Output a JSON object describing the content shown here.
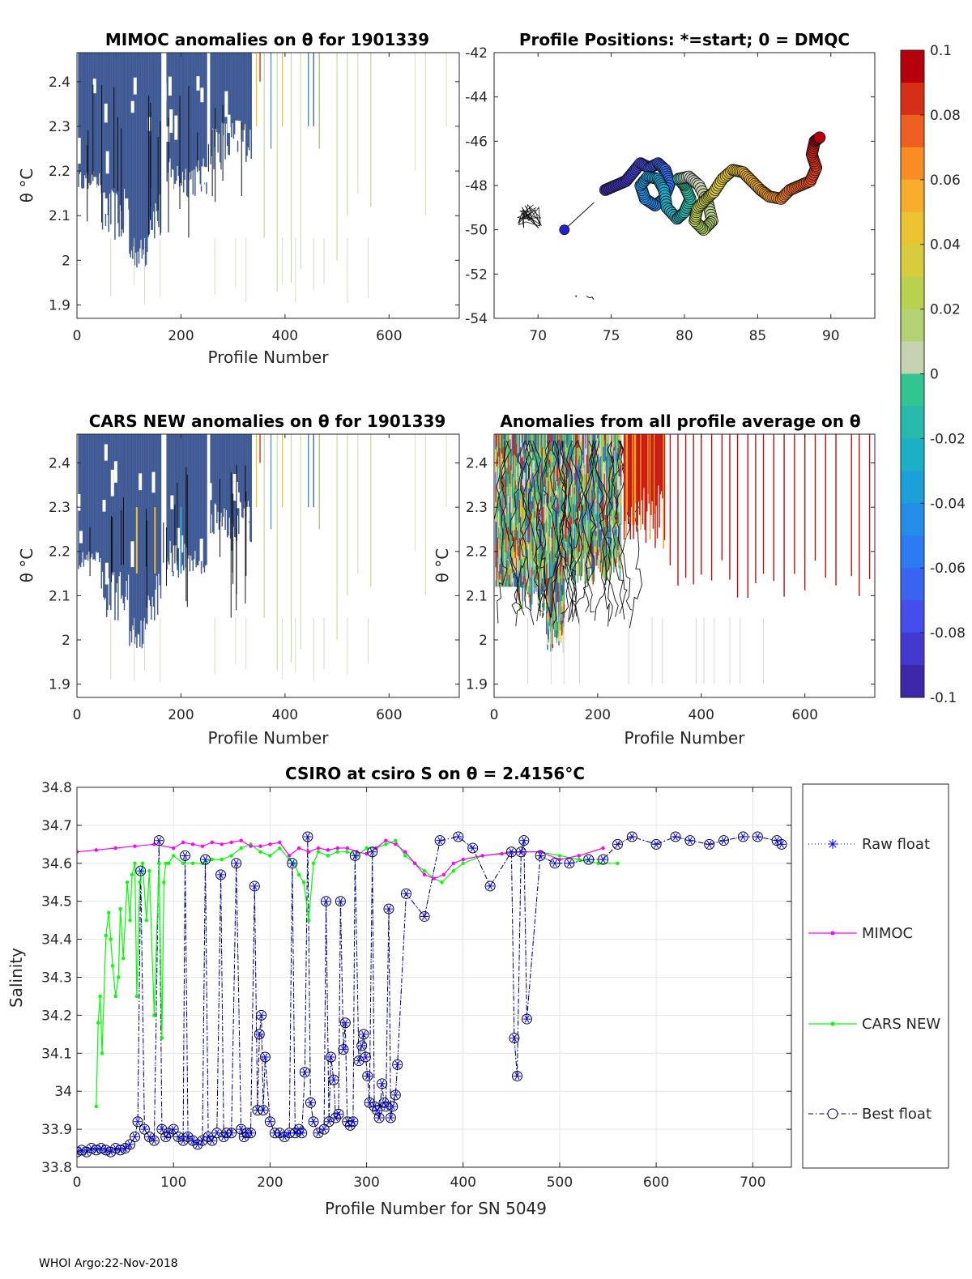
{
  "footer": "WHOI Argo:22-Nov-2018",
  "colorbar": {
    "ticks": [
      "0.1",
      "0.08",
      "0.06",
      "0.04",
      "0.02",
      "0",
      "-0.02",
      "-0.04",
      "-0.06",
      "-0.08",
      "-0.1"
    ],
    "range": [
      -0.1,
      0.1
    ]
  },
  "chart_data": [
    {
      "type": "heatmap",
      "title": "MIMOC anomalies on θ  for 1901339",
      "xlabel": "Profile Number",
      "ylabel": "θ °C",
      "xlim": [
        0,
        735
      ],
      "ylim": [
        1.87,
        2.465
      ],
      "xticks": [
        "0",
        "200",
        "400",
        "600"
      ],
      "yticks": [
        "2.4",
        "2.3",
        "2.2",
        "2.1",
        "2",
        "1.9"
      ]
    },
    {
      "type": "scatter",
      "title": "Profile Positions: *=start; 0 = DMQC",
      "xlim": [
        67,
        93
      ],
      "ylim": [
        -54,
        -42
      ],
      "xticks": [
        "70",
        "75",
        "80",
        "85",
        "90"
      ],
      "yticks": [
        "-42",
        "-44",
        "-46",
        "-48",
        "-50",
        "-52",
        "-54"
      ],
      "start": [
        74.1,
        -48.6
      ],
      "dmqc": [
        71.8,
        -50.0
      ],
      "track": [
        [
          74.6,
          -48.2
        ],
        [
          75.3,
          -48.0
        ],
        [
          76.0,
          -47.8
        ],
        [
          76.5,
          -47.4
        ],
        [
          77.0,
          -47.0
        ],
        [
          77.6,
          -47.2
        ],
        [
          78.2,
          -47.0
        ],
        [
          78.7,
          -47.3
        ],
        [
          79.0,
          -47.9
        ],
        [
          78.6,
          -48.6
        ],
        [
          78.0,
          -48.9
        ],
        [
          77.3,
          -48.6
        ],
        [
          77.0,
          -48.0
        ],
        [
          77.5,
          -47.6
        ],
        [
          78.2,
          -47.7
        ],
        [
          78.6,
          -48.2
        ],
        [
          78.8,
          -49.0
        ],
        [
          79.5,
          -49.5
        ],
        [
          80.0,
          -49.2
        ],
        [
          80.4,
          -48.6
        ],
        [
          80.0,
          -48.0
        ],
        [
          79.6,
          -47.7
        ],
        [
          80.3,
          -47.6
        ],
        [
          81.0,
          -48.0
        ],
        [
          81.6,
          -48.8
        ],
        [
          81.9,
          -49.6
        ],
        [
          81.3,
          -50.0
        ],
        [
          80.7,
          -49.6
        ],
        [
          80.9,
          -49.0
        ],
        [
          81.5,
          -48.6
        ],
        [
          82.0,
          -48.3
        ],
        [
          82.6,
          -47.7
        ],
        [
          83.3,
          -47.3
        ],
        [
          84.0,
          -47.4
        ],
        [
          84.6,
          -47.8
        ],
        [
          85.2,
          -48.2
        ],
        [
          85.8,
          -48.5
        ],
        [
          86.6,
          -48.6
        ],
        [
          87.2,
          -48.2
        ],
        [
          87.9,
          -48.0
        ],
        [
          88.6,
          -47.8
        ],
        [
          89.0,
          -47.2
        ],
        [
          88.7,
          -46.6
        ],
        [
          88.9,
          -46.0
        ],
        [
          89.3,
          -45.8
        ]
      ]
    },
    {
      "type": "heatmap",
      "title": "CARS NEW anomalies on θ for 1901339",
      "xlabel": "Profile Number",
      "ylabel": "θ °C",
      "xlim": [
        0,
        735
      ],
      "ylim": [
        1.87,
        2.465
      ],
      "xticks": [
        "0",
        "200",
        "400",
        "600"
      ],
      "yticks": [
        "2.4",
        "2.3",
        "2.2",
        "2.1",
        "2",
        "1.9"
      ]
    },
    {
      "type": "heatmap",
      "title": "Anomalies from all profile average on θ",
      "xlabel": "Profile Number",
      "ylabel": "θ °C",
      "xlim": [
        0,
        735
      ],
      "ylim": [
        1.87,
        2.465
      ],
      "xticks": [
        "0",
        "200",
        "400",
        "600"
      ],
      "yticks": [
        "2.4",
        "2.3",
        "2.2",
        "2.1",
        "2",
        "1.9"
      ]
    },
    {
      "type": "line",
      "title": "CSIRO at csiro S on θ = 2.4156°C",
      "xlabel": "Profile Number for SN 5049",
      "ylabel": "Salinity",
      "xlim": [
        0,
        740
      ],
      "ylim": [
        33.8,
        34.8
      ],
      "xticks": [
        "0",
        "100",
        "200",
        "300",
        "400",
        "500",
        "600",
        "700"
      ],
      "yticks": [
        "34.8",
        "34.7",
        "34.6",
        "34.5",
        "34.4",
        "34.3",
        "34.2",
        "34.1",
        "34",
        "33.9",
        "33.8"
      ],
      "series": [
        {
          "name": "Raw float",
          "color": "#0000ff",
          "style": "dotted-asterisk"
        },
        {
          "name": "MIMOC",
          "color": "#ff00ff",
          "style": "solid-dot",
          "x": [
            0,
            20,
            40,
            60,
            80,
            100,
            110,
            120,
            130,
            140,
            150,
            160,
            170,
            180,
            190,
            200,
            210,
            220,
            230,
            240,
            250,
            260,
            270,
            280,
            290,
            300,
            310,
            320,
            330,
            340,
            350,
            360,
            370,
            380,
            390,
            400,
            420,
            440,
            460,
            480,
            500,
            520,
            545
          ],
          "y": [
            34.63,
            34.635,
            34.64,
            34.645,
            34.65,
            34.64,
            34.655,
            34.65,
            34.645,
            34.655,
            34.65,
            34.655,
            34.66,
            34.645,
            34.645,
            34.65,
            34.655,
            34.62,
            34.64,
            34.63,
            34.64,
            34.635,
            34.64,
            34.64,
            34.63,
            34.625,
            34.64,
            34.66,
            34.65,
            34.63,
            34.6,
            34.57,
            34.56,
            34.57,
            34.6,
            34.61,
            34.62,
            34.625,
            34.63,
            34.63,
            34.61,
            34.62,
            34.64
          ]
        },
        {
          "name": "CARS NEW",
          "color": "#00ff00",
          "style": "solid-dot",
          "x": [
            20,
            22,
            24,
            26,
            30,
            33,
            35,
            37,
            40,
            43,
            45,
            48,
            52,
            55,
            57,
            60,
            62,
            65,
            68,
            72,
            75,
            80,
            85,
            88,
            90,
            92,
            95,
            100,
            110,
            120,
            130,
            140,
            150,
            160,
            170,
            180,
            190,
            200,
            210,
            220,
            225,
            230,
            235,
            240,
            245,
            250,
            260,
            270,
            280,
            290,
            300,
            310,
            320,
            330,
            340,
            350,
            360,
            370,
            378,
            390,
            400,
            420,
            450,
            480,
            500,
            520,
            540,
            560
          ],
          "y": [
            33.96,
            34.18,
            34.25,
            34.1,
            34.41,
            34.47,
            34.4,
            34.33,
            34.25,
            34.3,
            34.48,
            34.35,
            34.55,
            34.45,
            34.57,
            34.6,
            34.25,
            34.55,
            34.6,
            34.45,
            34.58,
            34.2,
            34.6,
            34.14,
            34.55,
            34.6,
            34.6,
            34.62,
            34.6,
            34.6,
            34.6,
            34.61,
            34.61,
            34.62,
            34.64,
            34.65,
            34.63,
            34.62,
            34.64,
            34.61,
            34.6,
            34.57,
            34.55,
            34.45,
            34.6,
            34.63,
            34.62,
            34.63,
            34.63,
            34.62,
            34.64,
            34.64,
            34.65,
            34.66,
            34.62,
            34.6,
            34.58,
            34.56,
            34.55,
            34.58,
            34.6,
            34.62,
            34.63,
            34.63,
            34.62,
            34.61,
            34.6,
            34.6
          ]
        },
        {
          "name": "Best float",
          "color": "#000040",
          "style": "dashdot-circle",
          "x": [
            0,
            5,
            10,
            15,
            20,
            25,
            30,
            35,
            40,
            45,
            50,
            55,
            60,
            63,
            66,
            70,
            75,
            80,
            85,
            88,
            92,
            95,
            100,
            105,
            110,
            112,
            115,
            120,
            125,
            130,
            133,
            136,
            140,
            145,
            149,
            152,
            155,
            160,
            165,
            170,
            173,
            176,
            180,
            184,
            187,
            189,
            191,
            193,
            195,
            200,
            205,
            210,
            215,
            220,
            223,
            226,
            230,
            233,
            236,
            239,
            242,
            245,
            250,
            256,
            258,
            261,
            263,
            266,
            268,
            271,
            273,
            276,
            278,
            280,
            283,
            286,
            288,
            292,
            295,
            297,
            299,
            301,
            303,
            306,
            308,
            311,
            313,
            316,
            318,
            320,
            323,
            325,
            327,
            330,
            332,
            341,
            360,
            376,
            395,
            410,
            428,
            450,
            453,
            456,
            460,
            463,
            466,
            480,
            495,
            510,
            530,
            545,
            560,
            575,
            600,
            620,
            635,
            655,
            670,
            690,
            705,
            725,
            730
          ],
          "y": [
            33.84,
            33.845,
            33.84,
            33.85,
            33.845,
            33.85,
            33.845,
            33.84,
            33.85,
            33.845,
            33.85,
            33.86,
            33.88,
            33.92,
            34.58,
            33.9,
            33.88,
            33.87,
            34.66,
            33.9,
            33.88,
            33.89,
            33.9,
            33.88,
            33.87,
            34.62,
            33.88,
            33.87,
            33.86,
            33.87,
            34.61,
            33.88,
            33.87,
            33.89,
            34.57,
            33.88,
            33.89,
            33.89,
            34.6,
            33.9,
            33.88,
            33.89,
            33.89,
            34.54,
            33.95,
            34.15,
            34.2,
            33.95,
            34.09,
            33.92,
            33.89,
            33.89,
            33.88,
            33.89,
            34.6,
            33.89,
            33.9,
            33.89,
            34.05,
            34.67,
            33.97,
            33.92,
            33.89,
            33.9,
            34.5,
            33.92,
            34.09,
            34.03,
            33.93,
            33.94,
            34.5,
            34.11,
            34.18,
            33.92,
            33.91,
            33.92,
            34.62,
            34.08,
            34.12,
            34.15,
            34.09,
            34.04,
            33.97,
            34.63,
            33.96,
            33.95,
            33.93,
            34.02,
            33.97,
            33.96,
            34.48,
            33.93,
            33.96,
            33.99,
            34.07,
            34.52,
            34.46,
            34.66,
            34.67,
            34.64,
            34.54,
            34.63,
            34.14,
            34.04,
            34.63,
            34.66,
            34.19,
            34.62,
            34.6,
            34.6,
            34.61,
            34.61,
            34.65,
            34.67,
            34.65,
            34.67,
            34.66,
            34.65,
            34.66,
            34.67,
            34.67,
            34.66,
            34.65
          ]
        }
      ]
    }
  ]
}
